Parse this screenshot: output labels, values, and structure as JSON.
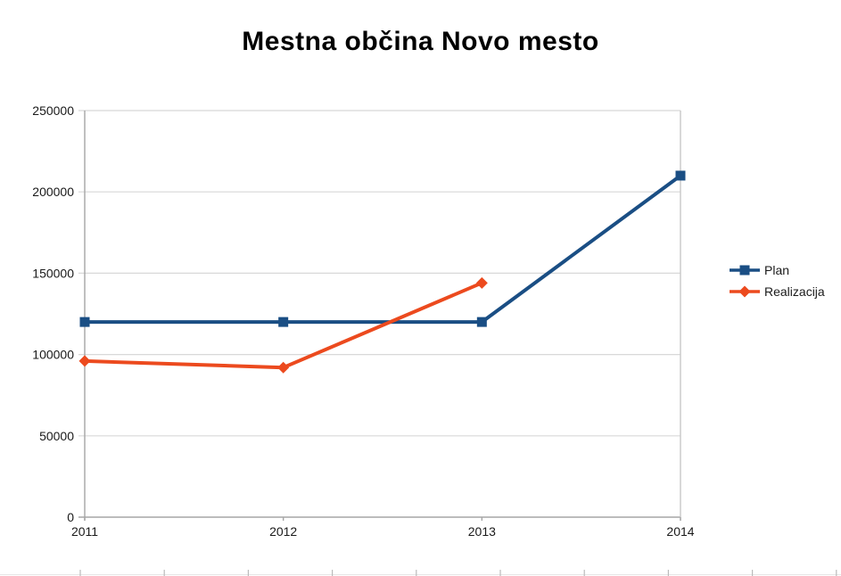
{
  "title": "Mestna občina Novo mesto",
  "colors": {
    "plan": "#1A4E84",
    "realizacija": "#EC4A1E",
    "grid": "#D8D8D8",
    "axis": "#A6A6A6",
    "plot_right_border": "#C8C8C8",
    "text": "#1a1a1a",
    "title_text": "#000000",
    "ruler_line": "#E6E6E6",
    "ruler_tick": "#BBBBBB"
  },
  "chart_data": {
    "type": "line",
    "title": "Mestna občina Novo mesto",
    "categories": [
      "2011",
      "2012",
      "2013",
      "2014"
    ],
    "series": [
      {
        "name": "Plan",
        "color": "#1A4E84",
        "marker": "square",
        "values": [
          120000,
          120000,
          120000,
          210000
        ]
      },
      {
        "name": "Realizacija",
        "color": "#EC4A1E",
        "marker": "diamond",
        "values": [
          96000,
          92000,
          144000,
          null
        ]
      }
    ],
    "xlabel": "",
    "ylabel": "",
    "ylim": [
      0,
      250000
    ],
    "ytick_step": 50000,
    "ytick_labels": [
      "0",
      "50000",
      "100000",
      "150000",
      "200000",
      "250000"
    ],
    "grid": "horizontal-only",
    "legend_position": "right",
    "legend_entries": [
      "Plan",
      "Realizacija"
    ]
  }
}
